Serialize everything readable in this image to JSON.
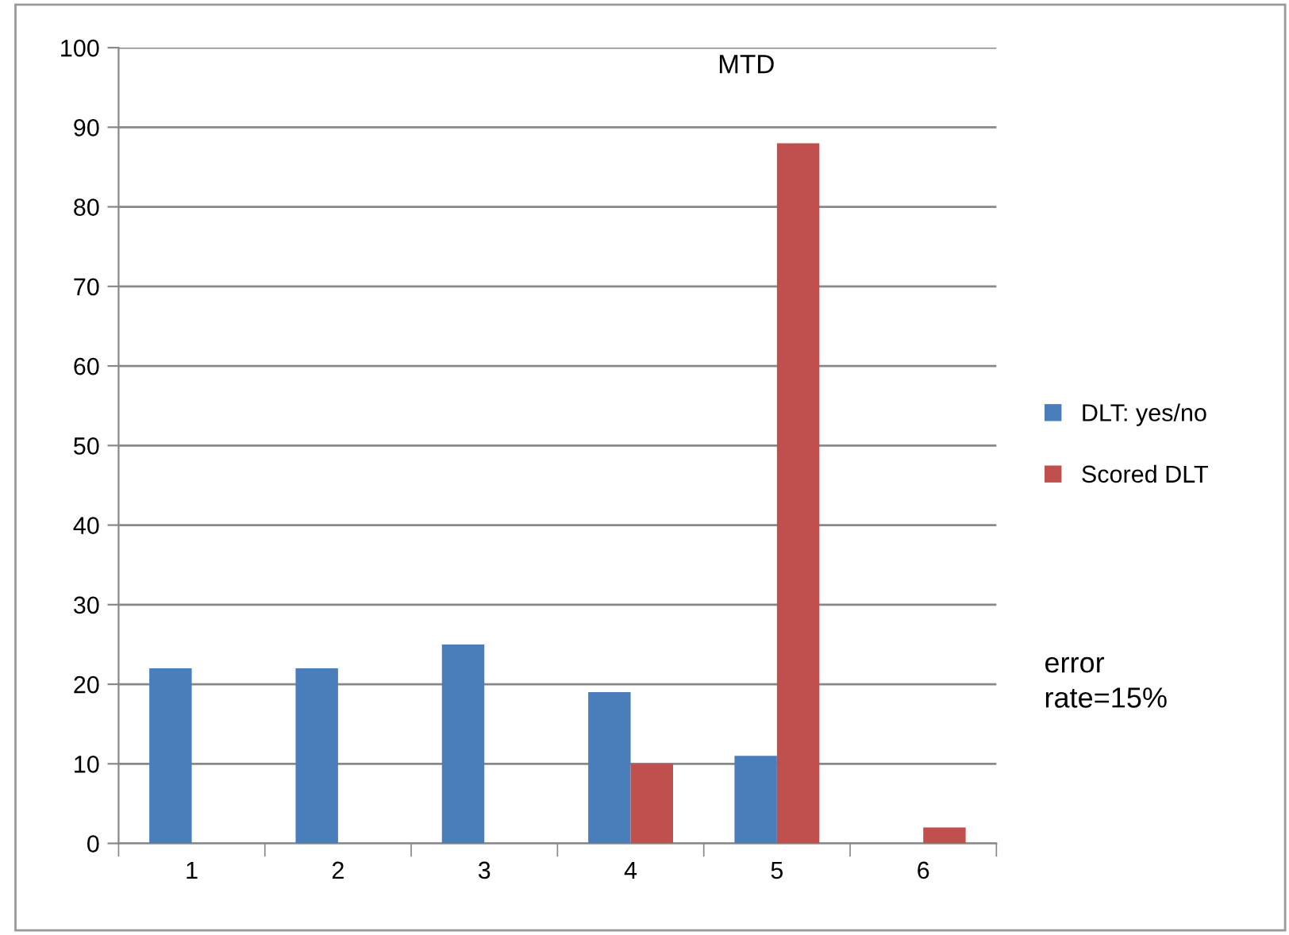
{
  "chart_data": {
    "type": "bar",
    "categories": [
      "1",
      "2",
      "3",
      "4",
      "5",
      "6"
    ],
    "series": [
      {
        "name": "DLT: yes/no",
        "color": "#4a7ebb",
        "values": [
          22,
          22,
          25,
          19,
          11,
          0
        ]
      },
      {
        "name": "Scored DLT",
        "color": "#c0504d",
        "values": [
          0,
          0,
          0,
          10,
          88,
          2
        ]
      }
    ],
    "ylim": [
      0,
      100
    ],
    "yticks": [
      0,
      10,
      20,
      30,
      40,
      50,
      60,
      70,
      80,
      90,
      100
    ],
    "grid": "y",
    "legend": "right",
    "annotations": [
      "MTD",
      "error\nrate=15%"
    ]
  }
}
